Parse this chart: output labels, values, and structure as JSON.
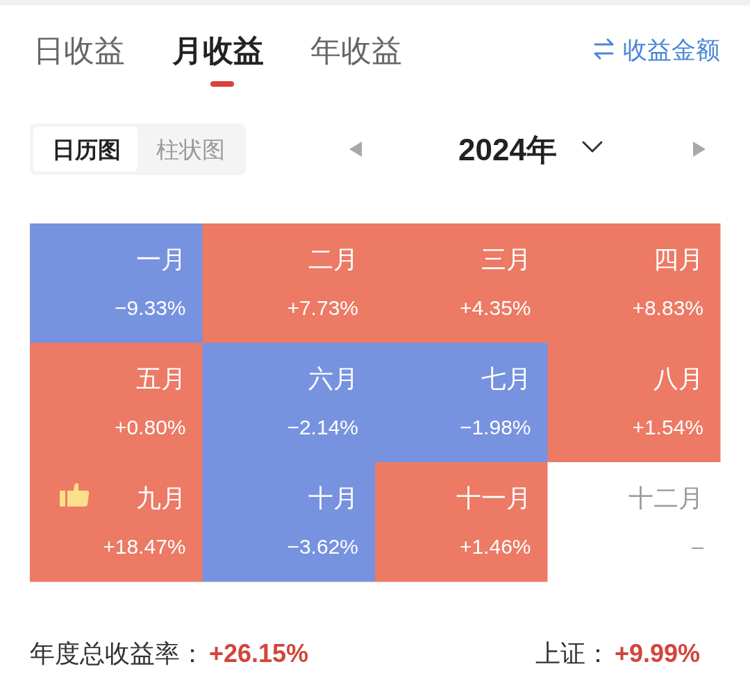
{
  "chart_data": {
    "type": "heatmap",
    "title": "月收益",
    "subtitle": "2024年",
    "categories": [
      null,
      null,
      null,
      null
    ],
    "y_categories": [
      null,
      null,
      null
    ],
    "cells": [
      [
        -9.33,
        7.73,
        4.35,
        8.83
      ],
      [
        0.8,
        -2.14,
        -1.98,
        1.54
      ],
      [
        18.47,
        -3.62,
        1.46,
        null
      ]
    ],
    "cell_labels": [
      [
        "一月\n−9.33%",
        "二月\n+7.73%",
        "三月\n+4.35%",
        "四月\n+8.83%"
      ],
      [
        "五月\n+0.80%",
        "六月\n−2.14%",
        "七月\n−1.98%",
        "八月\n+1.54%"
      ],
      [
        "九月\n+18.47%",
        "十月\n−3.62%",
        "十一月\n+1.46%",
        "十二月\n–"
      ]
    ],
    "annotations": [
      "日收益",
      "年收益",
      "收益金额",
      "日历图",
      "柱状图",
      "年度总收益率：+26.15%",
      "上证：+9.99%"
    ]
  }
}
